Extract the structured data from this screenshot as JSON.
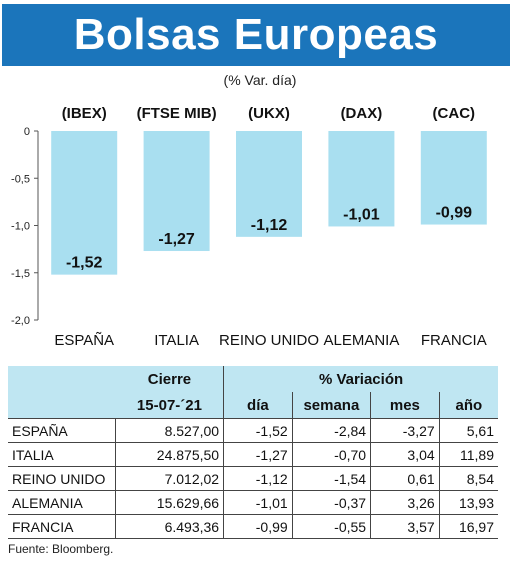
{
  "title": "Bolsas Europeas",
  "subtitle": "(% Var. día)",
  "chart_data": {
    "type": "bar",
    "indices": [
      "(IBEX)",
      "(FTSE MIB)",
      "(UKX)",
      "(DAX)",
      "(CAC)"
    ],
    "categories": [
      "ESPAÑA",
      "ITALIA",
      "REINO UNIDO",
      "ALEMANIA",
      "FRANCIA"
    ],
    "values": [
      -1.52,
      -1.27,
      -1.12,
      -1.01,
      -0.99
    ],
    "value_labels": [
      "-1,52",
      "-1,27",
      "-1,12",
      "-1,01",
      "-0,99"
    ],
    "yticks": [
      "0",
      "-0,5",
      "-1,0",
      "-1,5",
      "-2,0"
    ],
    "ytick_values": [
      0,
      -0.5,
      -1.0,
      -1.5,
      -2.0
    ],
    "ylim": [
      -2.0,
      0
    ],
    "bar_color": "#a9dff0"
  },
  "table": {
    "header_cierre": "Cierre",
    "header_date": "15-07-´21",
    "header_variacion": "% Variación",
    "cols": [
      "día",
      "semana",
      "mes",
      "año"
    ],
    "rows": [
      {
        "name": "ESPAÑA",
        "cierre": "8.527,00",
        "dia": "-1,52",
        "semana": "-2,84",
        "mes": "-3,27",
        "ano": "5,61"
      },
      {
        "name": "ITALIA",
        "cierre": "24.875,50",
        "dia": "-1,27",
        "semana": "-0,70",
        "mes": "3,04",
        "ano": "11,89"
      },
      {
        "name": "REINO UNIDO",
        "cierre": "7.012,02",
        "dia": "-1,12",
        "semana": "-1,54",
        "mes": "0,61",
        "ano": "8,54"
      },
      {
        "name": "ALEMANIA",
        "cierre": "15.629,66",
        "dia": "-1,01",
        "semana": "-0,37",
        "mes": "3,26",
        "ano": "13,93"
      },
      {
        "name": "FRANCIA",
        "cierre": "6.493,36",
        "dia": "-0,99",
        "semana": "-0,55",
        "mes": "3,57",
        "ano": "16,97"
      }
    ]
  },
  "source": "Fuente: Bloomberg.",
  "colors": {
    "header_bg": "#1b75bb",
    "table_header_bg": "#bfe6f2"
  }
}
